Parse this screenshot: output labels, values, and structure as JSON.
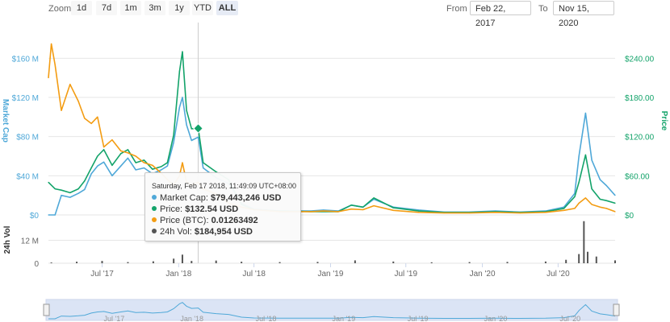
{
  "toolbar": {
    "zoom_label": "Zoom",
    "zoom_buttons": [
      "1d",
      "7d",
      "1m",
      "3m",
      "1y",
      "YTD",
      "ALL"
    ],
    "active_zoom": "ALL",
    "from_label": "From",
    "from_value": "Feb 22, 2017",
    "to_label": "To",
    "to_value": "Nov 15, 2020"
  },
  "tooltip": {
    "header": "Saturday, Feb 17 2018, 11:49:09 UTC+08:00",
    "rows": [
      {
        "label": "Market Cap:",
        "value": "$79,443,246 USD",
        "color": "#4fa8d8"
      },
      {
        "label": "Price:",
        "value": "$132.54 USD",
        "color": "#13a36a"
      },
      {
        "label": "Price (BTC):",
        "value": "0.01263492",
        "color": "#f39c12"
      },
      {
        "label": "24h Vol:",
        "value": "$184,954 USD",
        "color": "#555555"
      }
    ]
  },
  "chart_data": {
    "type": "line",
    "x_range": [
      "2017-02-22",
      "2020-11-15"
    ],
    "x_tick_labels": [
      "Jul '17",
      "Jan '18",
      "Jul '18",
      "Jan '19",
      "Jul '19",
      "Jan '20",
      "Jul '20"
    ],
    "left_axis": {
      "title": "Market Cap",
      "tick_labels": [
        "$0",
        "$40 M",
        "$80 M",
        "$120 M",
        "$160 M"
      ],
      "range": [
        0,
        180000000
      ]
    },
    "right_axis": {
      "title": "Price",
      "tick_labels": [
        "$0",
        "$60.00",
        "$120.00",
        "$180.00",
        "$240.00"
      ],
      "range": [
        0,
        270
      ]
    },
    "volume_axis": {
      "title": "24h Vol",
      "tick_labels": [
        "0",
        "12 M"
      ],
      "range": [
        0,
        24000000
      ]
    },
    "series": [
      {
        "name": "Market Cap",
        "axis": "left",
        "color": "#4fa8d8",
        "x": [
          "2017-02-22",
          "2017-03-10",
          "2017-03-25",
          "2017-04-15",
          "2017-05-05",
          "2017-05-20",
          "2017-06-05",
          "2017-06-20",
          "2017-07-05",
          "2017-07-25",
          "2017-08-15",
          "2017-09-01",
          "2017-09-20",
          "2017-10-10",
          "2017-10-30",
          "2017-11-20",
          "2017-12-05",
          "2017-12-20",
          "2018-01-03",
          "2018-01-10",
          "2018-01-20",
          "2018-02-01",
          "2018-02-17",
          "2018-03-01",
          "2018-04-01",
          "2018-05-01",
          "2018-06-01",
          "2018-07-01",
          "2018-09-01",
          "2018-11-15",
          "2018-12-15",
          "2019-01-20",
          "2019-02-20",
          "2019-03-20",
          "2019-04-15",
          "2019-06-01",
          "2019-08-01",
          "2019-10-01",
          "2019-12-01",
          "2020-02-01",
          "2020-04-01",
          "2020-06-01",
          "2020-07-15",
          "2020-08-10",
          "2020-08-20",
          "2020-09-05",
          "2020-09-20",
          "2020-10-10",
          "2020-10-25",
          "2020-11-15"
        ],
        "y": [
          0,
          0,
          20000000,
          18000000,
          22000000,
          26000000,
          42000000,
          50000000,
          54000000,
          40000000,
          50000000,
          58000000,
          46000000,
          48000000,
          42000000,
          46000000,
          50000000,
          74000000,
          110000000,
          120000000,
          92000000,
          76000000,
          79443246,
          48000000,
          38000000,
          32000000,
          12000000,
          6000000,
          4000000,
          4000000,
          5000000,
          4000000,
          10000000,
          8000000,
          16000000,
          8000000,
          5000000,
          3000000,
          3000000,
          4000000,
          3000000,
          4000000,
          8000000,
          22000000,
          60000000,
          104000000,
          56000000,
          36000000,
          30000000,
          20000000
        ]
      },
      {
        "name": "Price",
        "axis": "right",
        "color": "#13a36a",
        "x": [
          "2017-02-22",
          "2017-03-10",
          "2017-03-25",
          "2017-04-15",
          "2017-05-05",
          "2017-05-20",
          "2017-06-05",
          "2017-06-20",
          "2017-07-05",
          "2017-07-25",
          "2017-08-15",
          "2017-09-01",
          "2017-09-20",
          "2017-10-10",
          "2017-10-30",
          "2017-11-20",
          "2017-12-05",
          "2017-12-20",
          "2018-01-03",
          "2018-01-10",
          "2018-01-20",
          "2018-02-01",
          "2018-02-17",
          "2018-03-01",
          "2018-04-01",
          "2018-05-01",
          "2018-06-01",
          "2018-07-01",
          "2018-09-01",
          "2018-11-15",
          "2018-12-15",
          "2019-01-20",
          "2019-02-20",
          "2019-03-20",
          "2019-04-15",
          "2019-06-01",
          "2019-08-01",
          "2019-10-01",
          "2019-12-01",
          "2020-02-01",
          "2020-04-01",
          "2020-06-01",
          "2020-07-15",
          "2020-08-10",
          "2020-08-20",
          "2020-09-05",
          "2020-09-20",
          "2020-10-10",
          "2020-10-25",
          "2020-11-15"
        ],
        "y": [
          50,
          40,
          38,
          34,
          40,
          52,
          72,
          90,
          100,
          76,
          94,
          100,
          80,
          84,
          70,
          74,
          80,
          122,
          220,
          250,
          160,
          132,
          132.54,
          80,
          66,
          54,
          16,
          8,
          6,
          5,
          5,
          5,
          15,
          12,
          26,
          11,
          6,
          4,
          4,
          5,
          4,
          5,
          10,
          28,
          50,
          92,
          40,
          24,
          22,
          18
        ]
      },
      {
        "name": "Price (BTC)",
        "axis": "right",
        "color": "#f39c12",
        "x": [
          "2017-02-22",
          "2017-03-01",
          "2017-03-10",
          "2017-03-25",
          "2017-04-15",
          "2017-05-05",
          "2017-05-20",
          "2017-06-05",
          "2017-06-20",
          "2017-07-05",
          "2017-07-25",
          "2017-08-15",
          "2017-09-01",
          "2017-09-20",
          "2017-10-10",
          "2017-10-30",
          "2017-11-20",
          "2017-12-05",
          "2017-12-20",
          "2018-01-03",
          "2018-01-10",
          "2018-01-20",
          "2018-02-01",
          "2018-02-17",
          "2018-03-01",
          "2018-04-01",
          "2018-05-01",
          "2018-06-01",
          "2018-07-01",
          "2018-09-01",
          "2018-11-15",
          "2018-12-15",
          "2019-01-20",
          "2019-02-20",
          "2019-03-20",
          "2019-04-15",
          "2019-06-01",
          "2019-08-01",
          "2019-10-01",
          "2019-12-01",
          "2020-02-01",
          "2020-04-01",
          "2020-06-01",
          "2020-07-15",
          "2020-08-10",
          "2020-08-20",
          "2020-09-05",
          "2020-09-20",
          "2020-10-10",
          "2020-10-25",
          "2020-11-15"
        ],
        "y": [
          210,
          262,
          230,
          160,
          200,
          174,
          148,
          140,
          150,
          104,
          115,
          98,
          95,
          90,
          80,
          76,
          64,
          54,
          46,
          60,
          80,
          50,
          46,
          50,
          40,
          32,
          18,
          12,
          8,
          5,
          5,
          6,
          5,
          9,
          8,
          14,
          7,
          4,
          3,
          3,
          4,
          3,
          4,
          7,
          10,
          18,
          26,
          16,
          12,
          10,
          5
        ]
      }
    ],
    "volume": {
      "name": "24h Vol",
      "color": "#555555",
      "x": [
        "2017-03-01",
        "2017-05-01",
        "2017-07-01",
        "2017-09-01",
        "2017-11-01",
        "2017-12-20",
        "2018-01-10",
        "2018-02-01",
        "2018-04-01",
        "2018-06-01",
        "2018-09-01",
        "2018-12-01",
        "2019-03-01",
        "2019-06-01",
        "2019-09-01",
        "2019-12-01",
        "2020-03-01",
        "2020-06-01",
        "2020-07-20",
        "2020-08-20",
        "2020-09-01",
        "2020-09-10",
        "2020-10-01",
        "2020-11-15"
      ],
      "y": [
        400000,
        800000,
        1200000,
        600000,
        1000000,
        2400000,
        4500000,
        1200000,
        1400000,
        800000,
        600000,
        700000,
        1500000,
        900000,
        500000,
        600000,
        700000,
        900000,
        1800000,
        4800000,
        22000000,
        6000000,
        3500000,
        1500000
      ]
    },
    "legend": "none",
    "grid": true,
    "tooltip_date": "2018-02-17"
  }
}
